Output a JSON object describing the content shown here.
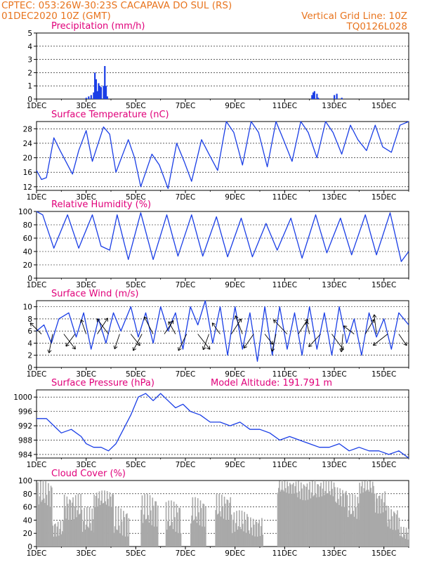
{
  "header": {
    "left_line1": "CPTEC:   053:26W-30:23S   CACAPAVA DO SUL (RS)",
    "left_line2": "01DEC2020 10Z (GMT)",
    "right_line2": "Vertical Grid Line: 10Z",
    "right_line3": "TQ0126L028"
  },
  "colors": {
    "header": "#e8741e",
    "title": "#e0007a",
    "line": "#1a3ee6",
    "bar": "#1a3ee6",
    "cloud": "#a9a9a9"
  },
  "x_axis": {
    "ticks": [
      "1DEC",
      "3DEC",
      "5DEC",
      "7DEC",
      "9DEC",
      "11DEC",
      "13DEC",
      "15DEC"
    ],
    "tick_days": [
      1,
      3,
      5,
      7,
      9,
      11,
      13,
      15
    ],
    "range_days": [
      1,
      16
    ]
  },
  "chart_data": [
    {
      "type": "bar",
      "title": "Precipitation (mm/h)",
      "ylim": [
        0,
        5
      ],
      "yticks": [
        0,
        1,
        2,
        3,
        4,
        5
      ],
      "bars": [
        {
          "x": 3.0,
          "y": 0.1
        },
        {
          "x": 3.1,
          "y": 0.2
        },
        {
          "x": 3.2,
          "y": 0.3
        },
        {
          "x": 3.3,
          "y": 0.5
        },
        {
          "x": 3.35,
          "y": 2.0
        },
        {
          "x": 3.4,
          "y": 1.5
        },
        {
          "x": 3.45,
          "y": 0.6
        },
        {
          "x": 3.5,
          "y": 1.2
        },
        {
          "x": 3.55,
          "y": 1.0
        },
        {
          "x": 3.6,
          "y": 0.9
        },
        {
          "x": 3.7,
          "y": 1.0
        },
        {
          "x": 3.75,
          "y": 2.5
        },
        {
          "x": 3.8,
          "y": 1.0
        },
        {
          "x": 3.85,
          "y": 0.2
        },
        {
          "x": 12.1,
          "y": 0.3
        },
        {
          "x": 12.15,
          "y": 0.5
        },
        {
          "x": 12.2,
          "y": 0.6
        },
        {
          "x": 12.3,
          "y": 0.4
        },
        {
          "x": 12.35,
          "y": 0.1
        },
        {
          "x": 13.0,
          "y": 0.3
        },
        {
          "x": 13.1,
          "y": 0.4
        },
        {
          "x": 13.3,
          "y": 0.1
        }
      ]
    },
    {
      "type": "line",
      "title": "Surface Temperature (nC)",
      "ylim": [
        11,
        30
      ],
      "yticks": [
        12,
        16,
        20,
        24,
        28
      ],
      "x": [
        1.0,
        1.2,
        1.4,
        1.7,
        1.95,
        2.45,
        2.7,
        3.0,
        3.25,
        3.7,
        3.95,
        4.2,
        4.7,
        4.95,
        5.2,
        5.65,
        5.95,
        6.3,
        6.65,
        6.95,
        7.25,
        7.65,
        7.95,
        8.3,
        8.65,
        8.95,
        9.3,
        9.65,
        9.95,
        10.3,
        10.65,
        10.95,
        11.3,
        11.65,
        11.95,
        12.3,
        12.65,
        12.95,
        13.3,
        13.65,
        13.95,
        14.3,
        14.65,
        14.95,
        15.3,
        15.65,
        16.0
      ],
      "values": [
        16.5,
        14.0,
        14.5,
        25.5,
        22.0,
        15.5,
        22.0,
        27.5,
        19.0,
        28.5,
        26.5,
        16.0,
        25.0,
        20.0,
        12.0,
        21.0,
        18.0,
        11.5,
        24.0,
        19.0,
        13.5,
        25.0,
        21.0,
        16.5,
        30.0,
        27.0,
        18.0,
        30.0,
        27.0,
        17.5,
        30.0,
        25.0,
        19.0,
        30.0,
        27.0,
        20.0,
        30.0,
        27.0,
        21.0,
        29.0,
        25.0,
        22.0,
        29.0,
        23.0,
        21.5,
        29.0,
        30.0
      ]
    },
    {
      "type": "line",
      "title": "Relative Humidity (%)",
      "ylim": [
        0,
        100
      ],
      "yticks": [
        0,
        20,
        40,
        60,
        80,
        100
      ],
      "x": [
        1.0,
        1.25,
        1.7,
        2.25,
        2.7,
        3.25,
        3.6,
        3.95,
        4.25,
        4.7,
        5.2,
        5.7,
        6.25,
        6.7,
        7.25,
        7.7,
        8.25,
        8.7,
        9.25,
        9.7,
        10.25,
        10.7,
        11.25,
        11.7,
        12.25,
        12.7,
        13.25,
        13.7,
        14.25,
        14.7,
        15.25,
        15.7,
        16.0
      ],
      "values": [
        100,
        95,
        45,
        95,
        45,
        95,
        48,
        42,
        95,
        28,
        98,
        28,
        95,
        33,
        95,
        33,
        92,
        32,
        90,
        32,
        82,
        42,
        90,
        30,
        95,
        38,
        90,
        35,
        95,
        35,
        98,
        25,
        40
      ]
    },
    {
      "type": "line",
      "title": "Surface Wind (m/s)",
      "ylim": [
        0,
        11
      ],
      "yticks": [
        0,
        2,
        4,
        6,
        8,
        10
      ],
      "x": [
        1.0,
        1.3,
        1.6,
        1.9,
        2.3,
        2.6,
        2.9,
        3.2,
        3.5,
        3.8,
        4.1,
        4.4,
        4.8,
        5.1,
        5.4,
        5.7,
        6.0,
        6.3,
        6.6,
        6.9,
        7.2,
        7.5,
        7.8,
        8.1,
        8.4,
        8.7,
        9.0,
        9.3,
        9.6,
        9.9,
        10.2,
        10.5,
        10.8,
        11.1,
        11.4,
        11.7,
        12.0,
        12.3,
        12.6,
        12.9,
        13.2,
        13.5,
        13.8,
        14.1,
        14.4,
        14.7,
        15.0,
        15.3,
        15.6,
        16.0
      ],
      "values": [
        6,
        7,
        4,
        8,
        9,
        5,
        9,
        3,
        8,
        4,
        9,
        6,
        10,
        5,
        9,
        4,
        10,
        6,
        9,
        3,
        10,
        7,
        11,
        4,
        10,
        2,
        10,
        3,
        9,
        1,
        10,
        2,
        10,
        3,
        9,
        2,
        10,
        3,
        9,
        2,
        10,
        4,
        8,
        2,
        9,
        5,
        8,
        3,
        9,
        7
      ]
    },
    {
      "type": "line",
      "title": "Surface Pressure (hPa)",
      "annotation": "Model Altitude: 191.791 m",
      "ylim": [
        983,
        1002
      ],
      "yticks": [
        984,
        988,
        992,
        996,
        1000
      ],
      "x": [
        1.0,
        1.4,
        1.7,
        2.0,
        2.4,
        2.8,
        3.0,
        3.3,
        3.6,
        3.9,
        4.2,
        4.5,
        4.8,
        5.1,
        5.4,
        5.7,
        6.0,
        6.3,
        6.6,
        6.9,
        7.2,
        7.6,
        8.0,
        8.4,
        8.8,
        9.2,
        9.6,
        10.0,
        10.4,
        10.8,
        11.2,
        11.6,
        12.0,
        12.4,
        12.8,
        13.2,
        13.6,
        14.0,
        14.4,
        14.8,
        15.2,
        15.6,
        16.0
      ],
      "values": [
        994,
        994,
        992,
        990,
        991,
        989,
        987,
        986,
        986,
        985,
        987,
        991,
        995,
        1000,
        1001,
        999,
        1001,
        999,
        997,
        998,
        996,
        995,
        993,
        993,
        992,
        993,
        991,
        991,
        990,
        988,
        989,
        988,
        987,
        986,
        986,
        987,
        985,
        986,
        985,
        985,
        984,
        985,
        983
      ]
    },
    {
      "type": "bar",
      "title": "Cloud Cover (%)",
      "ylim": [
        0,
        100
      ],
      "yticks": [
        0,
        20,
        40,
        60,
        80,
        100
      ],
      "clouds": [
        [
          1.0,
          1.6,
          100,
          60
        ],
        [
          1.6,
          2.1,
          40,
          15
        ],
        [
          2.1,
          2.8,
          80,
          40
        ],
        [
          2.8,
          3.3,
          60,
          20
        ],
        [
          3.3,
          4.1,
          85,
          60
        ],
        [
          4.1,
          4.7,
          60,
          15
        ],
        [
          5.2,
          5.9,
          80,
          30
        ],
        [
          6.2,
          6.8,
          70,
          20
        ],
        [
          7.2,
          7.8,
          75,
          30
        ],
        [
          8.2,
          8.8,
          80,
          40
        ],
        [
          8.8,
          9.5,
          55,
          20
        ],
        [
          9.5,
          10.1,
          45,
          15
        ],
        [
          10.7,
          11.5,
          100,
          80
        ],
        [
          11.5,
          12.3,
          100,
          70
        ],
        [
          12.3,
          13.0,
          100,
          75
        ],
        [
          13.0,
          13.5,
          90,
          60
        ],
        [
          13.5,
          14.0,
          80,
          40
        ],
        [
          14.0,
          14.6,
          100,
          80
        ],
        [
          14.6,
          15.1,
          85,
          50
        ],
        [
          15.1,
          15.6,
          60,
          25
        ],
        [
          15.6,
          16.0,
          30,
          10
        ]
      ]
    }
  ]
}
